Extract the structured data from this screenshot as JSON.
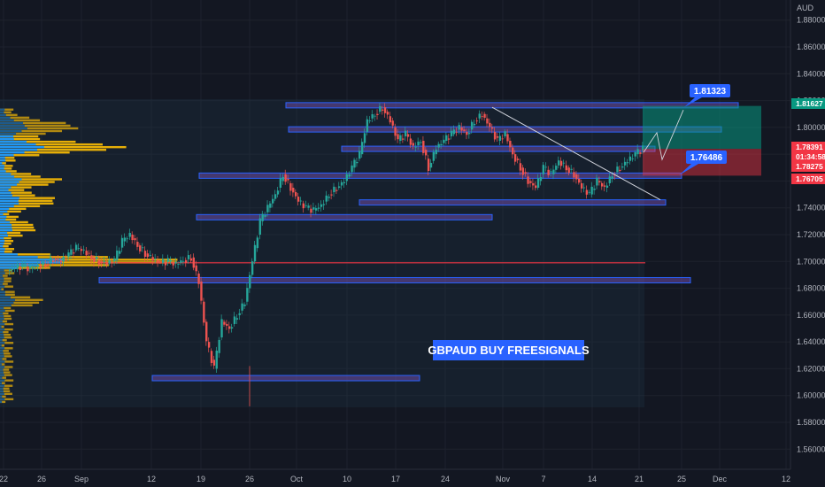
{
  "chart_data": {
    "type": "candlestick",
    "symbol": "GBPAUD",
    "currency_label": "AUD",
    "banner": "GBPAUD BUY FREESIGNALS",
    "ylim": [
      1.545,
      1.895
    ],
    "y_ticks": [
      "1.88000",
      "1.86000",
      "1.84000",
      "1.82000",
      "1.80000",
      "1.78000",
      "1.76000",
      "1.74000",
      "1.72000",
      "1.70000",
      "1.68000",
      "1.66000",
      "1.64000",
      "1.62000",
      "1.60000",
      "1.58000",
      "1.56000"
    ],
    "x_ticks": [
      "22",
      "26",
      "Sep",
      "12",
      "19",
      "26",
      "Oct",
      "10",
      "17",
      "24",
      "Nov",
      "7",
      "14",
      "21",
      "25",
      "Dec",
      "12"
    ],
    "price_tags": [
      {
        "label": "1.81627",
        "value": 1.81627,
        "bg": "#089981",
        "fg": "#ffffff"
      },
      {
        "label": "1.78391",
        "value": 1.78391,
        "bg": "#f23645",
        "fg": "#ffffff"
      },
      {
        "label": "01:34:58",
        "value": 1.7793,
        "bg": "#f23645",
        "fg": "#ffffff"
      },
      {
        "label": "1.78275",
        "value": 1.78275,
        "bg": "#f23645",
        "fg": "#ffffff"
      },
      {
        "label": "1.76705",
        "value": 1.76705,
        "bg": "#f23645",
        "fg": "#ffffff"
      }
    ],
    "callouts": [
      {
        "label": "1.81323",
        "value": 1.81323
      },
      {
        "label": "1.76486",
        "value": 1.76486
      }
    ],
    "levels": [
      {
        "value": 1.8165,
        "style": "zone"
      },
      {
        "value": 1.7985,
        "style": "zone"
      },
      {
        "value": 1.784,
        "style": "zone"
      },
      {
        "value": 1.764,
        "style": "zone"
      },
      {
        "value": 1.744,
        "style": "zone"
      },
      {
        "value": 1.733,
        "style": "zone"
      },
      {
        "value": 1.699,
        "style": "red-line"
      },
      {
        "value": 1.686,
        "style": "zone"
      },
      {
        "value": 1.613,
        "style": "zone"
      }
    ],
    "trendline": {
      "from": 1.815,
      "to": 1.746
    },
    "position": {
      "entry": 1.784,
      "target": 1.816,
      "stop": 1.764
    },
    "closes": [
      1.695,
      1.696,
      1.6945,
      1.697,
      1.698,
      1.702,
      1.7,
      1.705,
      1.71,
      1.708,
      1.703,
      1.7,
      1.6985,
      1.701,
      1.715,
      1.72,
      1.712,
      1.706,
      1.702,
      1.699,
      1.7,
      1.698,
      1.701,
      1.703,
      1.685,
      1.64,
      1.62,
      1.655,
      1.65,
      1.66,
      1.67,
      1.7,
      1.73,
      1.74,
      1.75,
      1.765,
      1.755,
      1.745,
      1.74,
      1.738,
      1.742,
      1.75,
      1.755,
      1.76,
      1.77,
      1.78,
      1.805,
      1.81,
      1.815,
      1.805,
      1.79,
      1.795,
      1.785,
      1.79,
      1.77,
      1.785,
      1.79,
      1.795,
      1.8,
      1.795,
      1.805,
      1.81,
      1.8,
      1.79,
      1.795,
      1.78,
      1.77,
      1.76,
      1.755,
      1.77,
      1.765,
      1.775,
      1.77,
      1.765,
      1.755,
      1.75,
      1.76,
      1.755,
      1.765,
      1.77,
      1.775,
      1.78,
      1.784
    ]
  }
}
